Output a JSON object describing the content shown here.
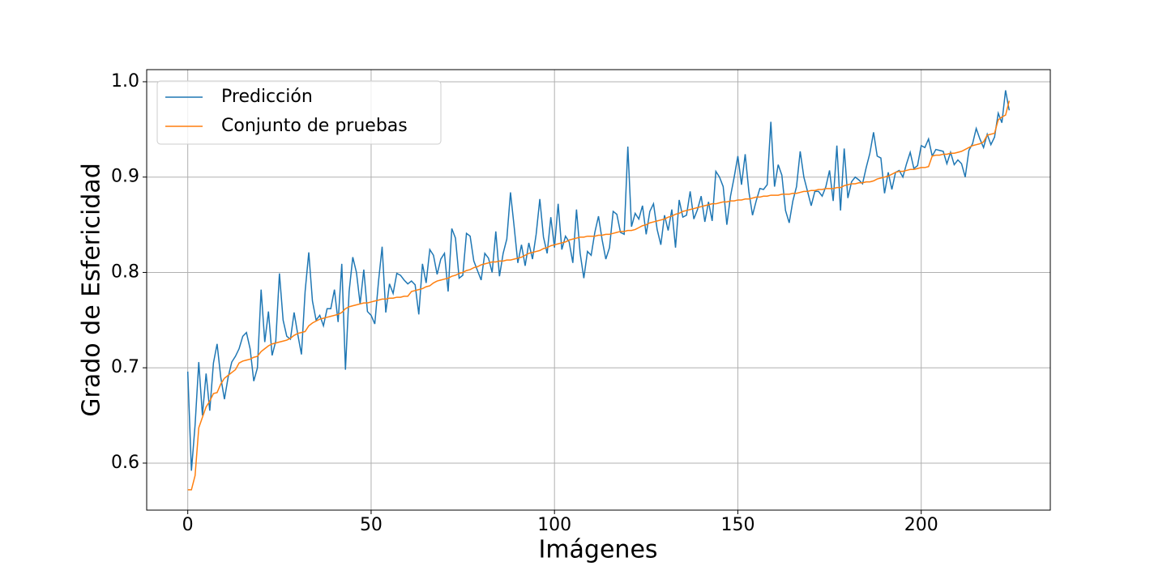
{
  "chart_data": {
    "type": "line",
    "xlabel": "Imágenes",
    "ylabel": "Grado de Esfericidad",
    "x": [
      0,
      1,
      2,
      3,
      4,
      5,
      6,
      7,
      8,
      9,
      10,
      11,
      12,
      13,
      14,
      15,
      16,
      17,
      18,
      19,
      20,
      21,
      22,
      23,
      24,
      25,
      26,
      27,
      28,
      29,
      30,
      31,
      32,
      33,
      34,
      35,
      36,
      37,
      38,
      39,
      40,
      41,
      42,
      43,
      44,
      45,
      46,
      47,
      48,
      49,
      50,
      51,
      52,
      53,
      54,
      55,
      56,
      57,
      58,
      59,
      60,
      61,
      62,
      63,
      64,
      65,
      66,
      67,
      68,
      69,
      70,
      71,
      72,
      73,
      74,
      75,
      76,
      77,
      78,
      79,
      80,
      81,
      82,
      83,
      84,
      85,
      86,
      87,
      88,
      89,
      90,
      91,
      92,
      93,
      94,
      95,
      96,
      97,
      98,
      99,
      100,
      101,
      102,
      103,
      104,
      105,
      106,
      107,
      108,
      109,
      110,
      111,
      112,
      113,
      114,
      115,
      116,
      117,
      118,
      119,
      120,
      121,
      122,
      123,
      124,
      125,
      126,
      127,
      128,
      129,
      130,
      131,
      132,
      133,
      134,
      135,
      136,
      137,
      138,
      139,
      140,
      141,
      142,
      143,
      144,
      145,
      146,
      147,
      148,
      149,
      150,
      151,
      152,
      153,
      154,
      155,
      156,
      157,
      158,
      159,
      160,
      161,
      162,
      163,
      164,
      165,
      166,
      167,
      168,
      169,
      170,
      171,
      172,
      173,
      174,
      175,
      176,
      177,
      178,
      179,
      180,
      181,
      182,
      183,
      184,
      185,
      186,
      187,
      188,
      189,
      190,
      191,
      192,
      193,
      194,
      195,
      196,
      197,
      198,
      199,
      200,
      201,
      202,
      203,
      204,
      205,
      206,
      207,
      208,
      209,
      210,
      211,
      212,
      213,
      214,
      215,
      216,
      217,
      218,
      219,
      220,
      221,
      222,
      223,
      224
    ],
    "series": [
      {
        "name": "Predicción",
        "color": "#1f77b4",
        "values": [
          0.696,
          0.592,
          0.64,
          0.706,
          0.65,
          0.694,
          0.655,
          0.705,
          0.725,
          0.69,
          0.667,
          0.69,
          0.706,
          0.712,
          0.72,
          0.733,
          0.737,
          0.72,
          0.686,
          0.7,
          0.782,
          0.727,
          0.759,
          0.713,
          0.728,
          0.799,
          0.75,
          0.733,
          0.73,
          0.758,
          0.735,
          0.714,
          0.78,
          0.821,
          0.77,
          0.75,
          0.755,
          0.744,
          0.762,
          0.762,
          0.782,
          0.748,
          0.809,
          0.698,
          0.78,
          0.816,
          0.8,
          0.767,
          0.803,
          0.759,
          0.755,
          0.746,
          0.79,
          0.827,
          0.758,
          0.788,
          0.778,
          0.799,
          0.797,
          0.792,
          0.788,
          0.791,
          0.787,
          0.756,
          0.809,
          0.789,
          0.824,
          0.818,
          0.798,
          0.814,
          0.82,
          0.78,
          0.846,
          0.836,
          0.794,
          0.797,
          0.841,
          0.838,
          0.812,
          0.802,
          0.792,
          0.82,
          0.815,
          0.8,
          0.843,
          0.796,
          0.82,
          0.835,
          0.884,
          0.848,
          0.81,
          0.829,
          0.807,
          0.831,
          0.814,
          0.84,
          0.877,
          0.837,
          0.82,
          0.858,
          0.826,
          0.872,
          0.824,
          0.838,
          0.832,
          0.81,
          0.866,
          0.82,
          0.794,
          0.822,
          0.818,
          0.842,
          0.859,
          0.834,
          0.814,
          0.826,
          0.864,
          0.861,
          0.842,
          0.84,
          0.932,
          0.848,
          0.862,
          0.856,
          0.87,
          0.84,
          0.864,
          0.872,
          0.845,
          0.829,
          0.86,
          0.844,
          0.866,
          0.826,
          0.876,
          0.858,
          0.86,
          0.885,
          0.856,
          0.866,
          0.88,
          0.853,
          0.874,
          0.854,
          0.906,
          0.9,
          0.89,
          0.85,
          0.88,
          0.9,
          0.922,
          0.892,
          0.924,
          0.885,
          0.86,
          0.875,
          0.888,
          0.887,
          0.892,
          0.958,
          0.89,
          0.913,
          0.902,
          0.865,
          0.852,
          0.875,
          0.89,
          0.927,
          0.9,
          0.885,
          0.87,
          0.885,
          0.885,
          0.88,
          0.89,
          0.907,
          0.875,
          0.933,
          0.865,
          0.93,
          0.878,
          0.895,
          0.9,
          0.897,
          0.893,
          0.91,
          0.925,
          0.947,
          0.922,
          0.92,
          0.883,
          0.905,
          0.887,
          0.905,
          0.907,
          0.9,
          0.914,
          0.926,
          0.909,
          0.912,
          0.933,
          0.931,
          0.94,
          0.922,
          0.929,
          0.928,
          0.927,
          0.914,
          0.926,
          0.913,
          0.918,
          0.914,
          0.9,
          0.928,
          0.935,
          0.951,
          0.94,
          0.931,
          0.945,
          0.934,
          0.942,
          0.967,
          0.957,
          0.991,
          0.97
        ]
      },
      {
        "name": "Conjunto de pruebas",
        "color": "#ff7f0e",
        "values": [
          0.572,
          0.572,
          0.587,
          0.637,
          0.648,
          0.659,
          0.665,
          0.673,
          0.674,
          0.683,
          0.689,
          0.692,
          0.695,
          0.698,
          0.705,
          0.707,
          0.708,
          0.709,
          0.711,
          0.712,
          0.717,
          0.72,
          0.723,
          0.725,
          0.726,
          0.727,
          0.728,
          0.729,
          0.731,
          0.734,
          0.736,
          0.737,
          0.738,
          0.744,
          0.747,
          0.749,
          0.751,
          0.752,
          0.753,
          0.754,
          0.755,
          0.756,
          0.758,
          0.762,
          0.764,
          0.765,
          0.766,
          0.767,
          0.768,
          0.768,
          0.769,
          0.77,
          0.771,
          0.772,
          0.772,
          0.773,
          0.773,
          0.774,
          0.774,
          0.775,
          0.775,
          0.78,
          0.781,
          0.782,
          0.783,
          0.785,
          0.786,
          0.789,
          0.791,
          0.792,
          0.793,
          0.794,
          0.796,
          0.797,
          0.799,
          0.8,
          0.802,
          0.803,
          0.805,
          0.806,
          0.808,
          0.809,
          0.81,
          0.811,
          0.811,
          0.812,
          0.812,
          0.813,
          0.813,
          0.814,
          0.815,
          0.816,
          0.818,
          0.82,
          0.821,
          0.822,
          0.823,
          0.825,
          0.826,
          0.828,
          0.829,
          0.83,
          0.831,
          0.832,
          0.834,
          0.835,
          0.836,
          0.837,
          0.837,
          0.838,
          0.838,
          0.838,
          0.839,
          0.839,
          0.84,
          0.84,
          0.841,
          0.842,
          0.843,
          0.843,
          0.844,
          0.844,
          0.845,
          0.847,
          0.849,
          0.85,
          0.852,
          0.853,
          0.854,
          0.855,
          0.856,
          0.858,
          0.859,
          0.861,
          0.862,
          0.864,
          0.865,
          0.866,
          0.867,
          0.868,
          0.869,
          0.87,
          0.871,
          0.872,
          0.872,
          0.873,
          0.874,
          0.874,
          0.875,
          0.875,
          0.876,
          0.876,
          0.877,
          0.877,
          0.878,
          0.879,
          0.879,
          0.88,
          0.88,
          0.881,
          0.881,
          0.881,
          0.882,
          0.882,
          0.882,
          0.883,
          0.883,
          0.884,
          0.885,
          0.885,
          0.886,
          0.886,
          0.887,
          0.887,
          0.888,
          0.888,
          0.888,
          0.889,
          0.889,
          0.891,
          0.892,
          0.893,
          0.893,
          0.894,
          0.894,
          0.895,
          0.895,
          0.896,
          0.898,
          0.899,
          0.9,
          0.901,
          0.903,
          0.905,
          0.906,
          0.906,
          0.907,
          0.908,
          0.908,
          0.909,
          0.91,
          0.91,
          0.911,
          0.922,
          0.923,
          0.923,
          0.924,
          0.924,
          0.925,
          0.925,
          0.926,
          0.927,
          0.929,
          0.931,
          0.933,
          0.934,
          0.935,
          0.937,
          0.944,
          0.945,
          0.946,
          0.96,
          0.963,
          0.965,
          0.98
        ]
      }
    ],
    "xlim": [
      -11.2,
      235.2
    ],
    "ylim": [
      0.5507,
      1.0127
    ],
    "xticks": [
      0,
      50,
      100,
      150,
      200
    ],
    "yticks": [
      0.6,
      0.7,
      0.8,
      0.9,
      {
        "value": 1,
        "label": "1.0"
      }
    ],
    "grid": true,
    "legend": "upper left"
  }
}
